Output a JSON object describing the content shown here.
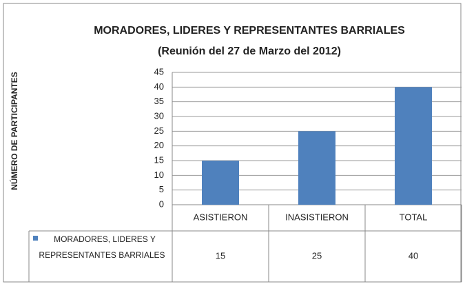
{
  "chart_data": {
    "type": "bar",
    "title": "MORADORES, LIDERES Y REPRESENTANTES BARRIALES",
    "subtitle": "(Reunión del 27 de Marzo del 2012)",
    "y_label": "NÚMERO DE PARTICIPANTES",
    "categories": [
      "ASISTIERON",
      "INASISTIERON",
      "TOTAL"
    ],
    "series": [
      {
        "name": "MORADORES, LIDERES Y REPRESENTANTES BARRIALES",
        "color": "#4f81bd",
        "values": [
          15,
          25,
          40
        ]
      }
    ],
    "ylim": [
      0,
      45
    ],
    "yticks": [
      0,
      5,
      10,
      15,
      20,
      25,
      30,
      35,
      40,
      45
    ],
    "grid": true
  }
}
